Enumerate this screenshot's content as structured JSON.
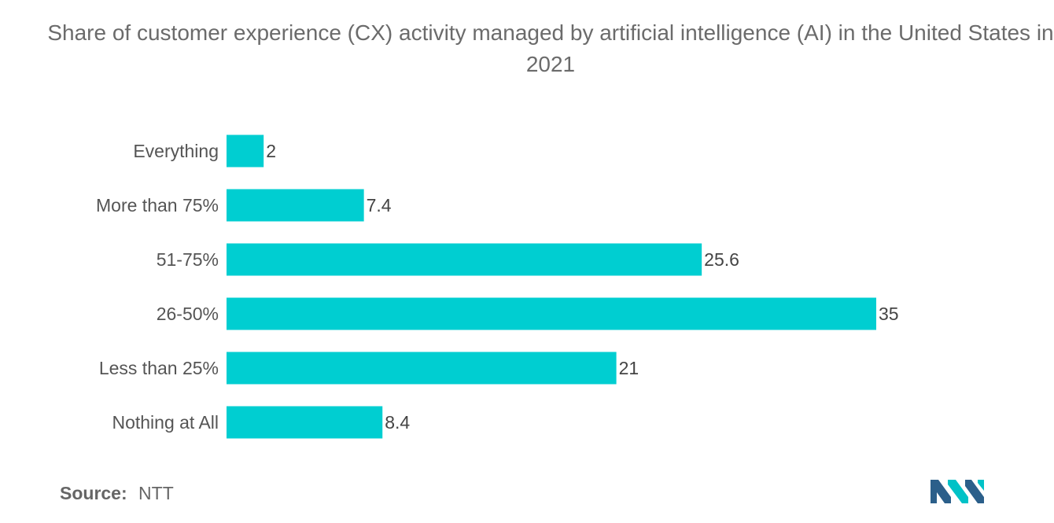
{
  "chart_data": {
    "type": "bar",
    "orientation": "horizontal",
    "title": "Share of customer experience (CX) activity managed by artificial intelligence (AI) in the United States in 2021",
    "categories": [
      "Everything",
      "More than 75%",
      "51-75%",
      "26-50%",
      "Less than 25%",
      "Nothing at All"
    ],
    "values": [
      2,
      7.4,
      25.6,
      35,
      21,
      8.4
    ],
    "value_labels": [
      "2",
      "7.4",
      "25.6",
      "35",
      "21",
      "8.4"
    ],
    "xlim": [
      0,
      35
    ],
    "grid": false,
    "legend": "none",
    "bar_color": "#00ced1"
  },
  "source": {
    "label": "Source:",
    "value": "NTT"
  },
  "logo": {
    "icon": "mordor-intelligence-logo-icon",
    "colors": [
      "#2b5f8a",
      "#00c2c7"
    ]
  }
}
